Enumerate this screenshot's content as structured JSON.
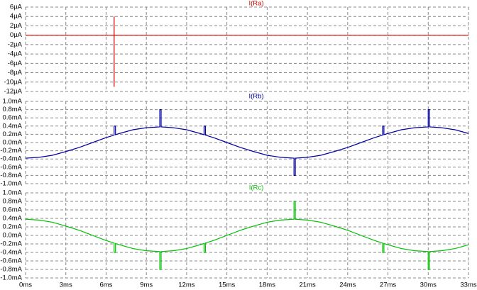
{
  "chart_data": [
    {
      "type": "line",
      "title": "I(Ra)",
      "title_color": "#d00000",
      "xlim": [
        0,
        33
      ],
      "ylim": [
        -12,
        6
      ],
      "yticks": [
        {
          "value": 6,
          "label": "6µA"
        },
        {
          "value": 4,
          "label": "4µA"
        },
        {
          "value": 2,
          "label": "2µA"
        },
        {
          "value": 0,
          "label": "0µA"
        },
        {
          "value": -2,
          "label": "-2µA"
        },
        {
          "value": -4,
          "label": "-4µA"
        },
        {
          "value": -6,
          "label": "-6µA"
        },
        {
          "value": -8,
          "label": "-8µA"
        },
        {
          "value": -10,
          "label": "-10µA"
        },
        {
          "value": -12,
          "label": "-12µA"
        }
      ],
      "grid": true,
      "series": [
        {
          "name": "I(Ra)",
          "color": "#d00000",
          "x": [
            0,
            6.6,
            6.6,
            6.6,
            6.6,
            33
          ],
          "values": [
            0,
            0,
            4,
            -11,
            0,
            0
          ]
        }
      ]
    },
    {
      "type": "line",
      "title": "I(Rb)",
      "title_color": "#0000a0",
      "xlim": [
        0,
        33
      ],
      "ylim": [
        -1,
        1
      ],
      "yticks": [
        {
          "value": 1,
          "label": "1.0mA"
        },
        {
          "value": 0.8,
          "label": "0.8mA"
        },
        {
          "value": 0.6,
          "label": "0.6mA"
        },
        {
          "value": 0.4,
          "label": "0.4mA"
        },
        {
          "value": 0.2,
          "label": "0.2mA"
        },
        {
          "value": 0,
          "label": "0.0mA"
        },
        {
          "value": -0.2,
          "label": "-0.2mA"
        },
        {
          "value": -0.4,
          "label": "-0.4mA"
        },
        {
          "value": -0.6,
          "label": "-0.6mA"
        },
        {
          "value": -0.8,
          "label": "-0.8mA"
        },
        {
          "value": -1,
          "label": "-1.0mA"
        }
      ],
      "grid": true,
      "series": [
        {
          "name": "I(Rb)",
          "color": "#0000a0",
          "x": [
            0,
            1,
            2,
            3,
            4,
            5,
            6,
            6.6,
            6.6,
            6.7,
            6.7,
            7,
            8,
            9,
            10,
            10,
            10.1,
            10.1,
            11,
            12,
            13,
            13.3,
            13.3,
            13.4,
            13.4,
            14,
            15,
            16,
            17,
            18,
            19,
            20,
            20,
            20.1,
            20.1,
            21,
            22,
            23,
            24,
            25,
            26,
            26.6,
            26.6,
            26.7,
            26.7,
            27,
            28,
            29,
            30,
            30,
            30.1,
            30.1,
            31,
            32,
            33
          ],
          "values": [
            -0.38,
            -0.36,
            -0.31,
            -0.22,
            -0.12,
            0,
            0.12,
            0.18,
            0.4,
            0.4,
            0.19,
            0.22,
            0.31,
            0.36,
            0.38,
            0.8,
            0.8,
            0.38,
            0.36,
            0.31,
            0.22,
            0.19,
            0.4,
            0.4,
            0.18,
            0.12,
            0,
            -0.12,
            -0.22,
            -0.31,
            -0.36,
            -0.38,
            -0.8,
            -0.8,
            -0.38,
            -0.36,
            -0.31,
            -0.22,
            -0.12,
            0,
            0.12,
            0.18,
            0.4,
            0.4,
            0.19,
            0.22,
            0.31,
            0.36,
            0.38,
            0.8,
            0.8,
            0.38,
            0.36,
            0.31,
            0.22
          ]
        }
      ]
    },
    {
      "type": "line",
      "title": "I(Rc)",
      "title_color": "#00c000",
      "xlim": [
        0,
        33
      ],
      "ylim": [
        -1,
        1
      ],
      "yticks": [
        {
          "value": 1,
          "label": "1.0mA"
        },
        {
          "value": 0.8,
          "label": "0.8mA"
        },
        {
          "value": 0.6,
          "label": "0.6mA"
        },
        {
          "value": 0.4,
          "label": "0.4mA"
        },
        {
          "value": 0.2,
          "label": "0.2mA"
        },
        {
          "value": 0,
          "label": "0.0mA"
        },
        {
          "value": -0.2,
          "label": "-0.2mA"
        },
        {
          "value": -0.4,
          "label": "-0.4mA"
        },
        {
          "value": -0.6,
          "label": "-0.6mA"
        },
        {
          "value": -0.8,
          "label": "-0.8mA"
        },
        {
          "value": -1,
          "label": "-1.0mA"
        }
      ],
      "xticks": [
        {
          "value": 0,
          "label": "0ms"
        },
        {
          "value": 3,
          "label": "3ms"
        },
        {
          "value": 6,
          "label": "6ms"
        },
        {
          "value": 9,
          "label": "9ms"
        },
        {
          "value": 12,
          "label": "12ms"
        },
        {
          "value": 15,
          "label": "15ms"
        },
        {
          "value": 18,
          "label": "18ms"
        },
        {
          "value": 21,
          "label": "21ms"
        },
        {
          "value": 24,
          "label": "24ms"
        },
        {
          "value": 27,
          "label": "27ms"
        },
        {
          "value": 30,
          "label": "30ms"
        },
        {
          "value": 33,
          "label": "33ms"
        }
      ],
      "grid": true,
      "series": [
        {
          "name": "I(Rc)",
          "color": "#00c000",
          "x": [
            0,
            1,
            2,
            3,
            4,
            5,
            6,
            6.6,
            6.6,
            6.7,
            6.7,
            7,
            8,
            9,
            10,
            10,
            10.1,
            10.1,
            11,
            12,
            13,
            13.3,
            13.3,
            13.4,
            13.4,
            14,
            15,
            16,
            17,
            18,
            19,
            20,
            20,
            20.1,
            20.1,
            21,
            22,
            23,
            24,
            25,
            26,
            26.6,
            26.6,
            26.7,
            26.7,
            27,
            28,
            29,
            30,
            30,
            30.1,
            30.1,
            31,
            32,
            33
          ],
          "values": [
            0.38,
            0.36,
            0.31,
            0.22,
            0.12,
            0,
            -0.12,
            -0.18,
            -0.4,
            -0.4,
            -0.19,
            -0.22,
            -0.31,
            -0.36,
            -0.38,
            -0.8,
            -0.8,
            -0.38,
            -0.36,
            -0.31,
            -0.22,
            -0.19,
            -0.4,
            -0.4,
            -0.18,
            -0.12,
            0,
            0.12,
            0.22,
            0.31,
            0.36,
            0.38,
            0.8,
            0.8,
            0.38,
            0.36,
            0.31,
            0.22,
            0.12,
            0,
            -0.12,
            -0.18,
            -0.4,
            -0.4,
            -0.19,
            -0.22,
            -0.31,
            -0.36,
            -0.38,
            -0.8,
            -0.8,
            -0.38,
            -0.36,
            -0.31,
            -0.22
          ]
        }
      ]
    }
  ]
}
